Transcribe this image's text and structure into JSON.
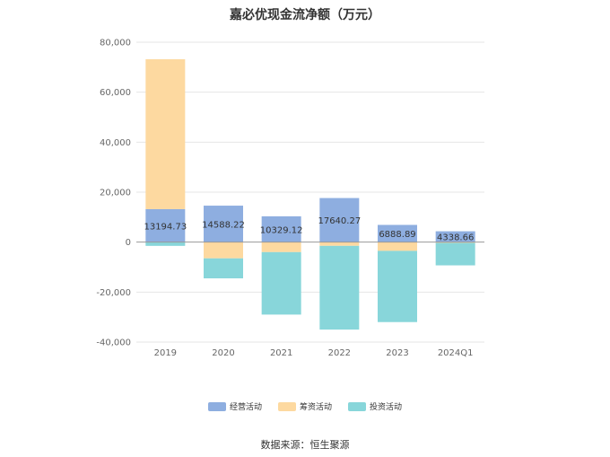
{
  "title": "嘉必优现金流净额（万元）",
  "source": "数据来源：恒生聚源",
  "chart_data": {
    "type": "bar",
    "stacked": true,
    "categories": [
      "2019",
      "2020",
      "2021",
      "2022",
      "2023",
      "2024Q1"
    ],
    "series": [
      {
        "name": "经营活动",
        "color": "#8eaee0",
        "values": [
          13194.73,
          14588.22,
          10329.12,
          17640.27,
          6888.89,
          4338.66
        ]
      },
      {
        "name": "筹资活动",
        "color": "#fdd9a0",
        "values": [
          60000,
          -6500,
          -4000,
          -1500,
          -3500,
          -300
        ]
      },
      {
        "name": "投资活动",
        "color": "#88d6da",
        "values": [
          -1500,
          -8000,
          -25000,
          -33500,
          -28500,
          -9000
        ]
      }
    ],
    "data_labels": [
      "13194.73",
      "14588.22",
      "10329.12",
      "17640.27",
      "6888.89",
      "4338.66"
    ],
    "ylim": [
      -40000,
      80000
    ],
    "yticks": [
      80000,
      60000,
      40000,
      20000,
      0,
      -20000,
      -40000
    ],
    "ytick_labels": [
      "80,000",
      "60,000",
      "40,000",
      "20,000",
      "0",
      "-20,000",
      "-40,000"
    ],
    "grid": true,
    "legend_position": "bottom"
  }
}
